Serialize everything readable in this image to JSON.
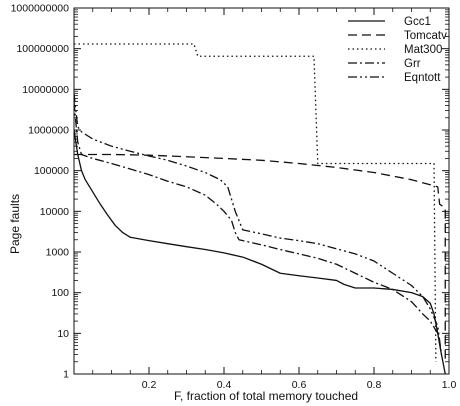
{
  "chart_data": {
    "type": "line",
    "title": "",
    "xlabel": "F, fraction of total memory touched",
    "ylabel": "Page faults",
    "xlim": [
      0,
      1
    ],
    "ylim": [
      1,
      1000000000
    ],
    "y_scale": "log",
    "x_ticks": [
      0.2,
      0.4,
      0.6,
      0.8,
      1.0
    ],
    "x_tick_labels": [
      "0.2",
      "0.4",
      "0.6",
      "0.8",
      "1.0"
    ],
    "y_ticks": [
      1,
      10,
      100,
      1000,
      10000,
      100000,
      1000000,
      10000000,
      100000000,
      1000000000
    ],
    "y_tick_labels": [
      "1",
      "10",
      "100",
      "1000",
      "10000",
      "100000",
      "1000000",
      "10000000",
      "100000000",
      "1000000000"
    ],
    "grid": false,
    "legend_position": "top-right",
    "series": [
      {
        "name": "Gcc1",
        "dash": "solid",
        "points": [
          [
            0.0,
            1000000
          ],
          [
            0.005,
            500000
          ],
          [
            0.01,
            250000
          ],
          [
            0.02,
            100000
          ],
          [
            0.03,
            60000
          ],
          [
            0.05,
            30000
          ],
          [
            0.07,
            15000
          ],
          [
            0.09,
            8000
          ],
          [
            0.11,
            4500
          ],
          [
            0.13,
            3000
          ],
          [
            0.15,
            2300
          ],
          [
            0.2,
            1900
          ],
          [
            0.25,
            1600
          ],
          [
            0.3,
            1350
          ],
          [
            0.35,
            1150
          ],
          [
            0.4,
            950
          ],
          [
            0.45,
            750
          ],
          [
            0.5,
            500
          ],
          [
            0.55,
            300
          ],
          [
            0.6,
            260
          ],
          [
            0.65,
            230
          ],
          [
            0.7,
            200
          ],
          [
            0.72,
            160
          ],
          [
            0.75,
            130
          ],
          [
            0.8,
            130
          ],
          [
            0.85,
            120
          ],
          [
            0.9,
            100
          ],
          [
            0.93,
            80
          ],
          [
            0.95,
            55
          ],
          [
            0.96,
            30
          ],
          [
            0.97,
            10
          ],
          [
            0.98,
            3
          ],
          [
            0.99,
            1
          ]
        ]
      },
      {
        "name": "Tomcatv",
        "dash": "dashed",
        "points": [
          [
            0.0,
            250000
          ],
          [
            0.1,
            250000
          ],
          [
            0.2,
            240000
          ],
          [
            0.3,
            220000
          ],
          [
            0.4,
            200000
          ],
          [
            0.5,
            180000
          ],
          [
            0.6,
            150000
          ],
          [
            0.7,
            120000
          ],
          [
            0.8,
            90000
          ],
          [
            0.9,
            60000
          ],
          [
            0.95,
            45000
          ],
          [
            0.97,
            40000
          ],
          [
            0.975,
            15000
          ],
          [
            0.99,
            12000
          ],
          [
            0.99,
            2
          ]
        ]
      },
      {
        "name": "Mat300",
        "dash": "dotted",
        "points": [
          [
            0.0,
            130000000
          ],
          [
            0.32,
            130000000
          ],
          [
            0.33,
            65000000
          ],
          [
            0.64,
            65000000
          ],
          [
            0.65,
            150000
          ],
          [
            0.96,
            150000
          ],
          [
            0.965,
            2
          ]
        ]
      },
      {
        "name": "Grr",
        "dash": "dashdot",
        "points": [
          [
            0.0,
            5000000
          ],
          [
            0.005,
            1500000
          ],
          [
            0.01,
            500000
          ],
          [
            0.02,
            250000
          ],
          [
            0.05,
            200000
          ],
          [
            0.1,
            150000
          ],
          [
            0.15,
            110000
          ],
          [
            0.2,
            80000
          ],
          [
            0.25,
            55000
          ],
          [
            0.3,
            40000
          ],
          [
            0.35,
            25000
          ],
          [
            0.38,
            15000
          ],
          [
            0.4,
            10000
          ],
          [
            0.42,
            6000
          ],
          [
            0.43,
            3000
          ],
          [
            0.44,
            2000
          ],
          [
            0.5,
            1500
          ],
          [
            0.55,
            1150
          ],
          [
            0.6,
            900
          ],
          [
            0.65,
            700
          ],
          [
            0.7,
            500
          ],
          [
            0.75,
            300
          ],
          [
            0.8,
            180
          ],
          [
            0.85,
            120
          ],
          [
            0.9,
            60
          ],
          [
            0.93,
            30
          ],
          [
            0.95,
            20
          ],
          [
            0.97,
            10
          ],
          [
            0.98,
            3
          ]
        ]
      },
      {
        "name": "Eqntott",
        "dash": "dashdotdot",
        "points": [
          [
            0.0,
            8000000
          ],
          [
            0.005,
            3000000
          ],
          [
            0.01,
            1200000
          ],
          [
            0.02,
            900000
          ],
          [
            0.05,
            600000
          ],
          [
            0.1,
            400000
          ],
          [
            0.15,
            300000
          ],
          [
            0.2,
            230000
          ],
          [
            0.25,
            180000
          ],
          [
            0.3,
            130000
          ],
          [
            0.35,
            90000
          ],
          [
            0.39,
            60000
          ],
          [
            0.41,
            40000
          ],
          [
            0.43,
            10000
          ],
          [
            0.45,
            3500
          ],
          [
            0.5,
            2800
          ],
          [
            0.55,
            2200
          ],
          [
            0.6,
            1900
          ],
          [
            0.65,
            1600
          ],
          [
            0.7,
            1200
          ],
          [
            0.75,
            900
          ],
          [
            0.8,
            600
          ],
          [
            0.85,
            300
          ],
          [
            0.9,
            150
          ],
          [
            0.93,
            80
          ],
          [
            0.95,
            40
          ],
          [
            0.97,
            15
          ],
          [
            0.98,
            3
          ]
        ]
      }
    ]
  }
}
